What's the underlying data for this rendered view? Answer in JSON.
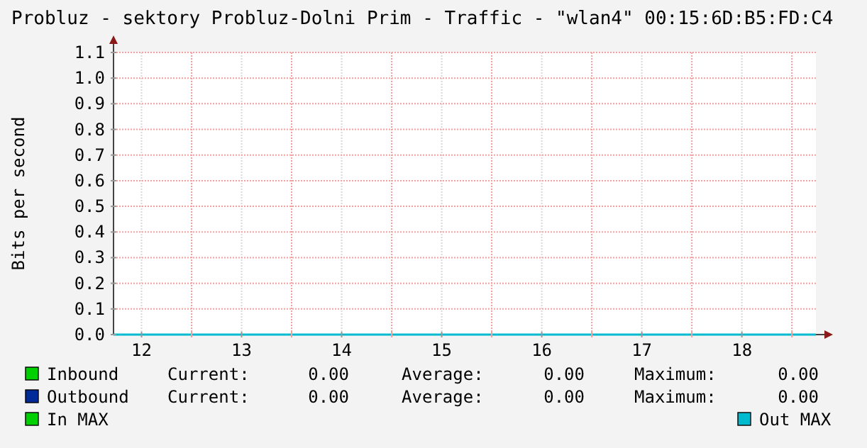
{
  "chart_data": {
    "type": "line",
    "title": "Probluz - sektory Probluz-Dolni Prim - Traffic - \"wlan4\" 00:15:6D:B5:FD:C4",
    "ylabel": "Bits per second",
    "x": [
      11.72,
      18.74
    ],
    "series": [
      {
        "name": "Inbound",
        "color": "#00cf00",
        "values": [
          null,
          null
        ]
      },
      {
        "name": "Outbound",
        "color": "#002a97",
        "values": [
          null,
          null
        ]
      },
      {
        "name": "In MAX",
        "color": "#00cf00",
        "values": [
          null,
          null
        ]
      },
      {
        "name": "Out MAX",
        "color": "#00bbd0",
        "values": [
          0,
          0
        ]
      }
    ],
    "xlim": [
      11.72,
      18.74
    ],
    "xticks": [
      12,
      {
        "value": 12.5,
        "label": null
      },
      13,
      {
        "value": 13.5,
        "label": null
      },
      14,
      {
        "value": 14.5,
        "label": null
      },
      15,
      {
        "value": 15.5,
        "label": null
      },
      16,
      {
        "value": 16.5,
        "label": null
      },
      17,
      {
        "value": 17.5,
        "label": null
      },
      18,
      {
        "value": 18.5,
        "label": null
      }
    ],
    "ylim": [
      0,
      1.1
    ],
    "yticks": [
      {
        "value": 0,
        "label": "0.0"
      },
      0.1,
      0.2,
      0.3,
      0.4,
      0.5,
      0.6,
      0.7,
      0.8,
      0.9,
      {
        "value": 1,
        "label": "1.0"
      },
      1.1
    ],
    "grid": true,
    "legend": "bottom",
    "annotations": [
      "Current:",
      "0.00",
      "Average:",
      "0.00",
      "Maximum:",
      "0.00",
      "Current:",
      "0.00",
      "Average:",
      "0.00",
      "Maximum:",
      "0.00"
    ]
  }
}
